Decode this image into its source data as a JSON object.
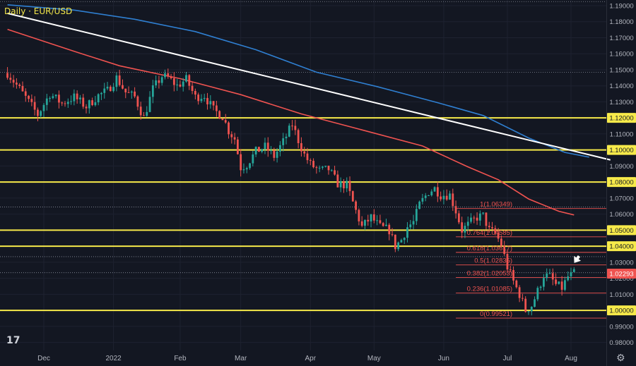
{
  "chart_data": {
    "type": "candlestick",
    "title": "Daily · EUR/USD",
    "last_price_label": "1.02293",
    "y_ticks": [
      "1.19000",
      "1.18000",
      "1.17000",
      "1.16000",
      "1.15000",
      "1.14000",
      "1.13000",
      "1.12000",
      "1.11000",
      "1.10000",
      "1.09000",
      "1.08000",
      "1.07000",
      "1.06000",
      "1.05000",
      "1.04000",
      "1.03000",
      "1.02000",
      "1.01000",
      "1.00000",
      "0.99000",
      "0.98000"
    ],
    "ylim": [
      0.975,
      1.1935
    ],
    "x_ticks": [
      {
        "label": "Dec",
        "day": 0
      },
      {
        "label": "2022",
        "day": 23
      },
      {
        "label": "Feb",
        "day": 45
      },
      {
        "label": "Mar",
        "day": 65
      },
      {
        "label": "Apr",
        "day": 88
      },
      {
        "label": "May",
        "day": 109
      },
      {
        "label": "Jun",
        "day": 132
      },
      {
        "label": "Jul",
        "day": 153
      },
      {
        "label": "Aug",
        "day": 174
      }
    ],
    "support_resistance_levels": [
      1.12,
      1.1,
      1.08,
      1.05,
      1.04,
      1.0
    ],
    "boxed_level_labels": [
      "1.12000",
      "1.10000",
      "1.08000",
      "1.05000",
      "1.04000",
      "1.00000"
    ],
    "fibonacci": [
      {
        "label": "1(1.06349)",
        "value": 1.06349
      },
      {
        "label": "0.764(1.04585)",
        "value": 1.04585
      },
      {
        "label": "0.618(1.03617)",
        "value": 1.03617
      },
      {
        "label": "0.5(1.02835)",
        "value": 1.02835
      },
      {
        "label": "0.382(1.02053)",
        "value": 1.02053
      },
      {
        "label": "0.236(1.01085)",
        "value": 1.01085
      },
      {
        "label": "0(0.99521)",
        "value": 0.99521
      }
    ],
    "dotted_levels": [
      1.1925,
      1.1485,
      1.0645,
      1.0335,
      1.0235
    ],
    "trendline": {
      "from": {
        "day": -12,
        "price": 1.1852
      },
      "to": {
        "day": 187,
        "price": 1.0938
      }
    },
    "ma_slow": {
      "color": "#2f7fd1",
      "points": [
        [
          -12,
          1.1905
        ],
        [
          10,
          1.1872
        ],
        [
          30,
          1.1815
        ],
        [
          50,
          1.1738
        ],
        [
          70,
          1.1625
        ],
        [
          90,
          1.1485
        ],
        [
          110,
          1.1395
        ],
        [
          130,
          1.1295
        ],
        [
          145,
          1.1215
        ],
        [
          160,
          1.1075
        ],
        [
          172,
          1.0985
        ],
        [
          180,
          1.0955
        ]
      ]
    },
    "ma_fast": {
      "color": "#f05350",
      "points": [
        [
          -12,
          1.1752
        ],
        [
          10,
          1.1615
        ],
        [
          25,
          1.1525
        ],
        [
          45,
          1.1445
        ],
        [
          65,
          1.1345
        ],
        [
          85,
          1.1225
        ],
        [
          105,
          1.1125
        ],
        [
          125,
          1.1025
        ],
        [
          140,
          1.0895
        ],
        [
          150,
          1.0815
        ],
        [
          160,
          1.0695
        ],
        [
          170,
          1.0618
        ],
        [
          175,
          1.0595
        ]
      ]
    },
    "candle_anchors": [
      [
        -12,
        1.148
      ],
      [
        -8,
        1.138
      ],
      [
        -5,
        1.13
      ],
      [
        -2,
        1.122
      ],
      [
        2,
        1.135
      ],
      [
        6,
        1.129
      ],
      [
        10,
        1.133
      ],
      [
        14,
        1.127
      ],
      [
        18,
        1.134
      ],
      [
        21,
        1.137
      ],
      [
        24,
        1.145
      ],
      [
        27,
        1.136
      ],
      [
        30,
        1.133
      ],
      [
        33,
        1.12
      ],
      [
        36,
        1.138
      ],
      [
        39,
        1.146
      ],
      [
        41,
        1.145
      ],
      [
        44,
        1.14
      ],
      [
        47,
        1.144
      ],
      [
        50,
        1.133
      ],
      [
        53,
        1.134
      ],
      [
        56,
        1.125
      ],
      [
        59,
        1.121
      ],
      [
        61,
        1.112
      ],
      [
        63,
        1.107
      ],
      [
        65,
        1.089
      ],
      [
        67,
        1.091
      ],
      [
        70,
        1.099
      ],
      [
        73,
        1.102
      ],
      [
        76,
        1.096
      ],
      [
        79,
        1.105
      ],
      [
        82,
        1.116
      ],
      [
        84,
        1.106
      ],
      [
        86,
        1.097
      ],
      [
        88,
        1.091
      ],
      [
        91,
        1.087
      ],
      [
        94,
        1.088
      ],
      [
        97,
        1.079
      ],
      [
        100,
        1.078
      ],
      [
        103,
        1.062
      ],
      [
        105,
        1.052
      ],
      [
        108,
        1.058
      ],
      [
        111,
        1.052
      ],
      [
        114,
        1.05
      ],
      [
        116,
        1.04
      ],
      [
        118,
        1.044
      ],
      [
        120,
        1.052
      ],
      [
        122,
        1.055
      ],
      [
        124,
        1.066
      ],
      [
        127,
        1.074
      ],
      [
        129,
        1.076
      ],
      [
        131,
        1.072
      ],
      [
        134,
        1.072
      ],
      [
        136,
        1.062
      ],
      [
        138,
        1.05
      ],
      [
        141,
        1.055
      ],
      [
        143,
        1.058
      ],
      [
        145,
        1.059
      ],
      [
        147,
        1.05
      ],
      [
        149,
        1.048
      ],
      [
        151,
        1.041
      ],
      [
        153,
        1.027
      ],
      [
        155,
        1.018
      ],
      [
        157,
        1.01
      ],
      [
        159,
        1.0
      ],
      [
        161,
        1.003
      ],
      [
        163,
        1.012
      ],
      [
        165,
        1.022
      ],
      [
        167,
        1.021
      ],
      [
        169,
        1.016
      ],
      [
        171,
        1.014
      ],
      [
        173,
        1.021
      ],
      [
        175,
        1.023
      ]
    ],
    "candle_colors": {
      "up": "#26a69a",
      "down": "#ef5350"
    },
    "level_color": "#f7ea4a"
  }
}
